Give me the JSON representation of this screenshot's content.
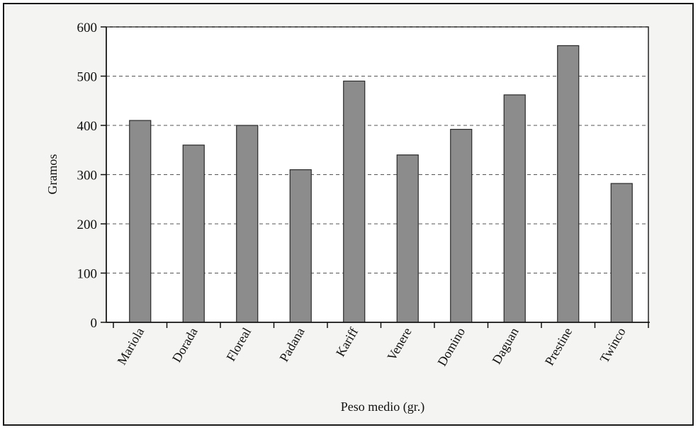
{
  "chart_data": {
    "type": "bar",
    "title": "",
    "xlabel": "Peso medio (gr.)",
    "ylabel": "Gramos",
    "categories": [
      "Mariola",
      "Dorada",
      "Floreal",
      "Padana",
      "Kariff",
      "Venere",
      "Domino",
      "Daguan",
      "Prestine",
      "Twinco"
    ],
    "values": [
      410,
      360,
      400,
      310,
      490,
      340,
      392,
      462,
      562,
      282
    ],
    "ylim": [
      0,
      600
    ],
    "yticks": [
      "0",
      "100",
      "200",
      "300",
      "400",
      "500",
      "600"
    ],
    "grid": "horizontal dashed",
    "bar_color": "#8c8c8c",
    "bar_edge_color": "#2a2a2a"
  }
}
